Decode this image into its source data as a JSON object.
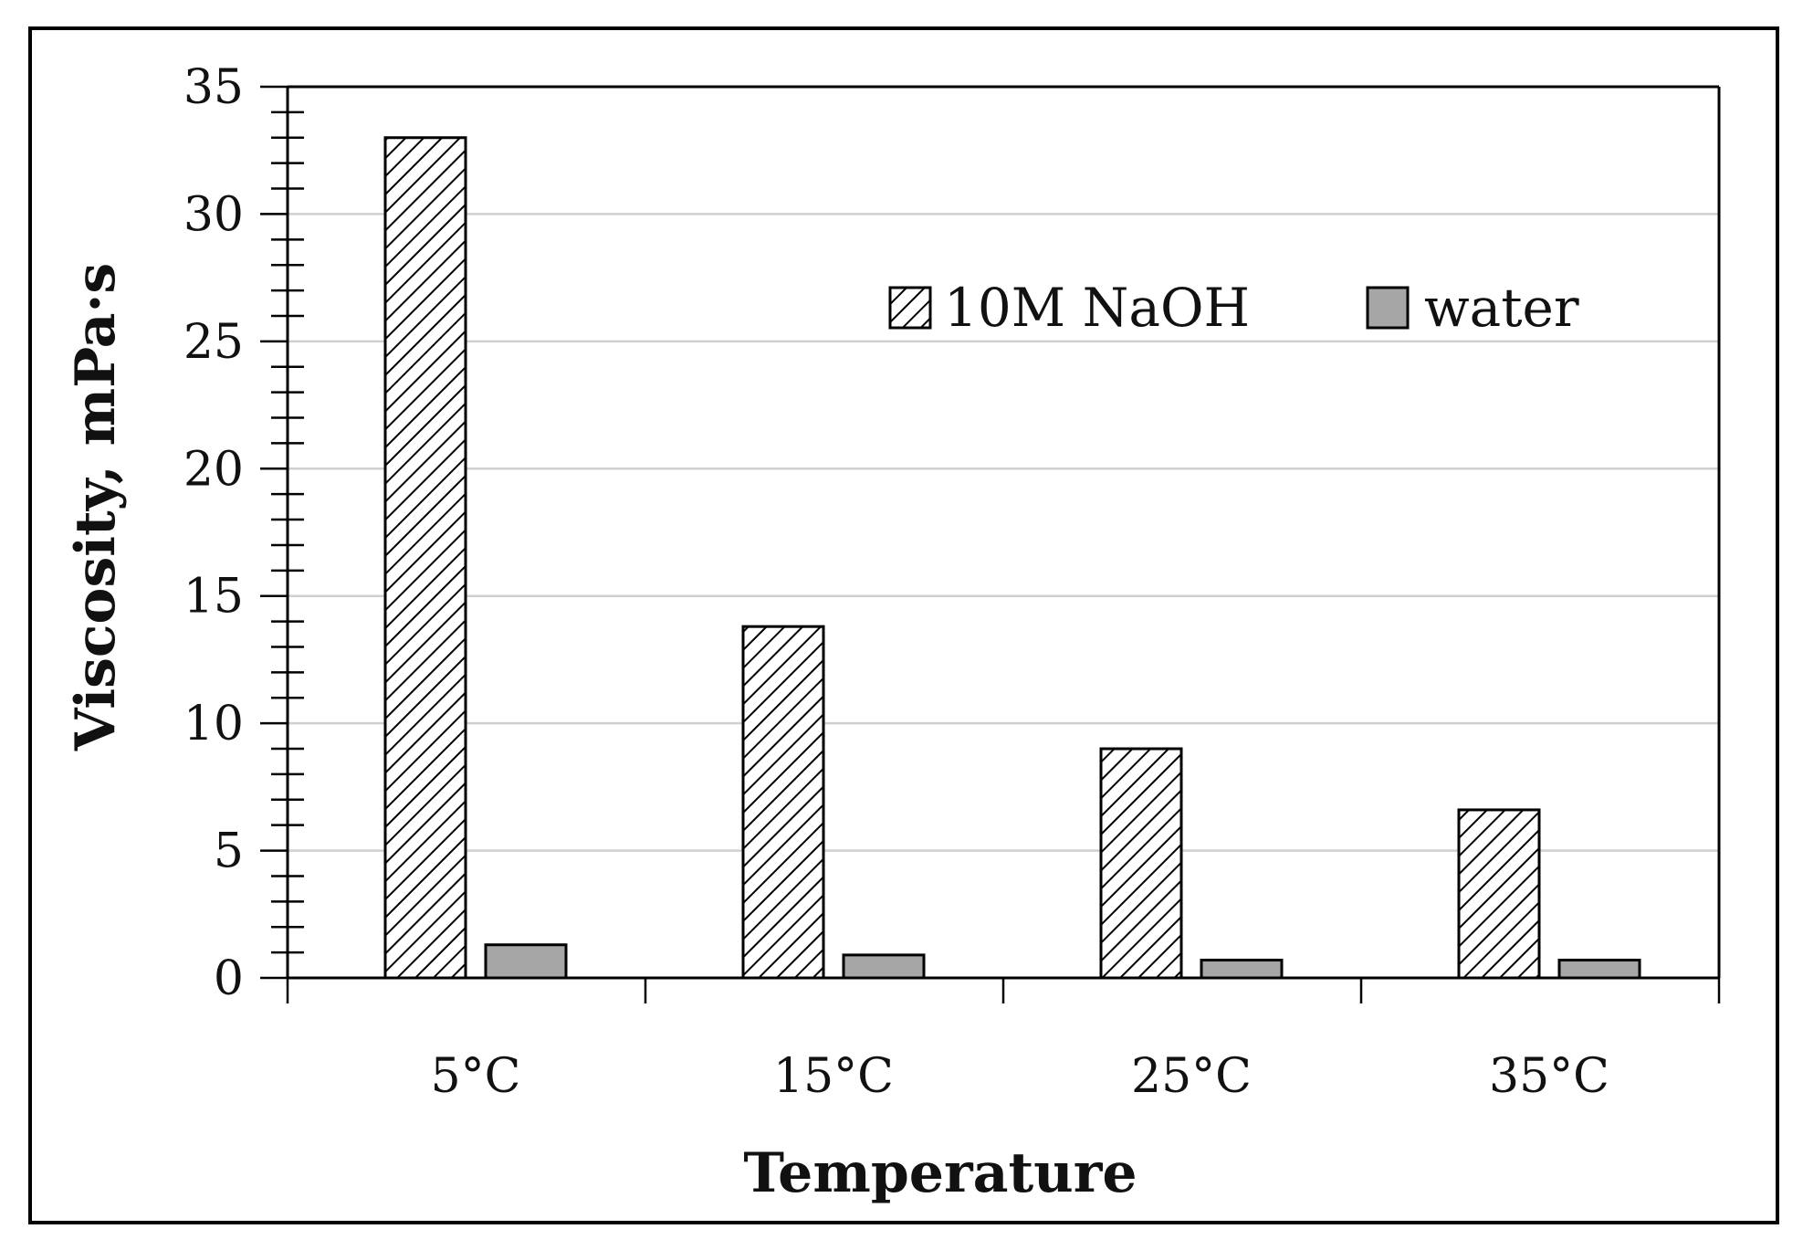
{
  "chart_data": {
    "type": "bar",
    "xlabel": "Temperature",
    "ylabel": "Viscosity, mPa·s",
    "categories": [
      "5°C",
      "15°C",
      "25°C",
      "35°C"
    ],
    "series": [
      {
        "name": "10M NaOH",
        "values": [
          33.0,
          13.8,
          9.0,
          6.6
        ],
        "pattern": "diagonal-hatch"
      },
      {
        "name": "water",
        "values": [
          1.3,
          0.9,
          0.7,
          0.7
        ],
        "color": "#a6a6a6"
      }
    ],
    "ylim": [
      0,
      35
    ],
    "yticks": [
      0,
      5,
      10,
      15,
      20,
      25,
      30,
      35
    ],
    "grid": true,
    "legend_position": "top-right"
  }
}
